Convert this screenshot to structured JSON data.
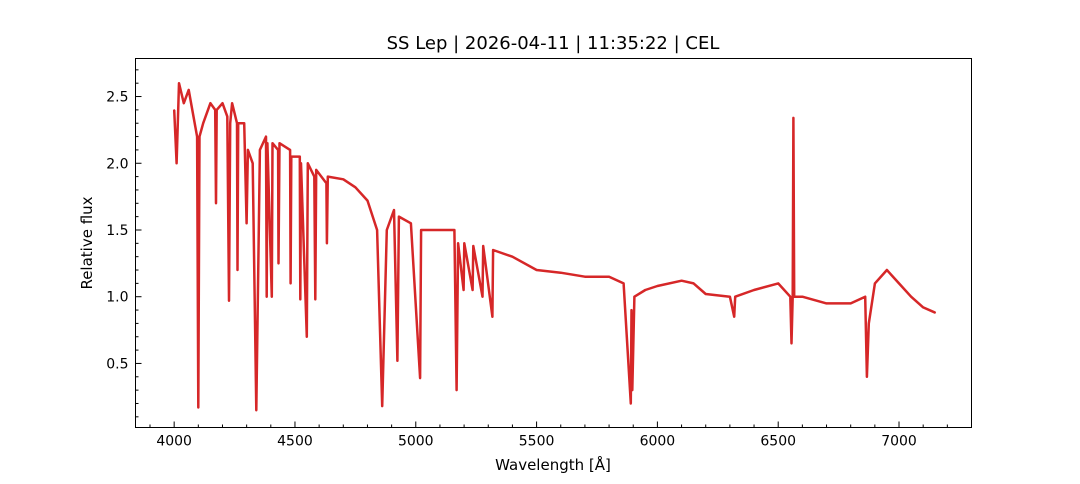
{
  "chart_data": {
    "type": "line",
    "title": "SS Lep | 2026-04-11 | 11:35:22 | CEL",
    "xlabel": "Wavelength [Å]",
    "ylabel": "Relative flux",
    "xlim": [
      3840,
      7300
    ],
    "ylim": [
      0.02,
      2.785
    ],
    "xticks": [
      4000,
      4500,
      5000,
      5500,
      6000,
      6500,
      7000
    ],
    "yticks": [
      0.5,
      1.0,
      1.5,
      2.0,
      2.5
    ],
    "ytick_labels": [
      "0.5",
      "1.0",
      "1.5",
      "2.0",
      "2.5"
    ],
    "grid": false,
    "color": "#d62728",
    "points": [
      [
        4000,
        2.4
      ],
      [
        4010,
        2.0
      ],
      [
        4020,
        2.6
      ],
      [
        4040,
        2.45
      ],
      [
        4060,
        2.55
      ],
      [
        4080,
        2.35
      ],
      [
        4095,
        2.2
      ],
      [
        4100,
        0.17
      ],
      [
        4105,
        2.2
      ],
      [
        4120,
        2.3
      ],
      [
        4150,
        2.45
      ],
      [
        4170,
        2.4
      ],
      [
        4173,
        1.7
      ],
      [
        4176,
        2.4
      ],
      [
        4200,
        2.45
      ],
      [
        4220,
        2.35
      ],
      [
        4227,
        0.97
      ],
      [
        4232,
        2.3
      ],
      [
        4240,
        2.45
      ],
      [
        4260,
        2.3
      ],
      [
        4262,
        1.2
      ],
      [
        4265,
        2.3
      ],
      [
        4290,
        2.3
      ],
      [
        4300,
        1.55
      ],
      [
        4305,
        2.1
      ],
      [
        4325,
        2.0
      ],
      [
        4340,
        0.15
      ],
      [
        4355,
        2.1
      ],
      [
        4380,
        2.2
      ],
      [
        4383,
        1.0
      ],
      [
        4386,
        2.15
      ],
      [
        4404,
        1.0
      ],
      [
        4407,
        2.15
      ],
      [
        4430,
        2.1
      ],
      [
        4432,
        1.25
      ],
      [
        4436,
        2.15
      ],
      [
        4480,
        2.1
      ],
      [
        4482,
        1.1
      ],
      [
        4485,
        2.05
      ],
      [
        4520,
        2.05
      ],
      [
        4522,
        0.98
      ],
      [
        4525,
        2.0
      ],
      [
        4549,
        0.7
      ],
      [
        4553,
        2.0
      ],
      [
        4580,
        1.9
      ],
      [
        4584,
        0.98
      ],
      [
        4588,
        1.95
      ],
      [
        4630,
        1.85
      ],
      [
        4632,
        1.4
      ],
      [
        4636,
        1.9
      ],
      [
        4700,
        1.88
      ],
      [
        4750,
        1.82
      ],
      [
        4800,
        1.72
      ],
      [
        4840,
        1.5
      ],
      [
        4861,
        0.18
      ],
      [
        4880,
        1.5
      ],
      [
        4910,
        1.65
      ],
      [
        4924,
        0.52
      ],
      [
        4930,
        1.6
      ],
      [
        4980,
        1.55
      ],
      [
        5018,
        0.39
      ],
      [
        5022,
        1.5
      ],
      [
        5100,
        1.5
      ],
      [
        5160,
        1.5
      ],
      [
        5169,
        0.3
      ],
      [
        5175,
        1.4
      ],
      [
        5198,
        1.05
      ],
      [
        5201,
        1.4
      ],
      [
        5235,
        1.05
      ],
      [
        5238,
        1.38
      ],
      [
        5276,
        1.0
      ],
      [
        5279,
        1.38
      ],
      [
        5317,
        0.85
      ],
      [
        5320,
        1.35
      ],
      [
        5400,
        1.3
      ],
      [
        5500,
        1.2
      ],
      [
        5600,
        1.18
      ],
      [
        5700,
        1.15
      ],
      [
        5800,
        1.15
      ],
      [
        5860,
        1.1
      ],
      [
        5890,
        0.2
      ],
      [
        5893,
        0.9
      ],
      [
        5896,
        0.3
      ],
      [
        5905,
        1.0
      ],
      [
        5950,
        1.05
      ],
      [
        6000,
        1.08
      ],
      [
        6100,
        1.12
      ],
      [
        6150,
        1.1
      ],
      [
        6200,
        1.02
      ],
      [
        6300,
        1.0
      ],
      [
        6318,
        0.85
      ],
      [
        6322,
        1.0
      ],
      [
        6400,
        1.05
      ],
      [
        6500,
        1.1
      ],
      [
        6550,
        1.0
      ],
      [
        6555,
        0.65
      ],
      [
        6560,
        1.0
      ],
      [
        6563,
        2.34
      ],
      [
        6566,
        1.0
      ],
      [
        6600,
        1.0
      ],
      [
        6700,
        0.95
      ],
      [
        6800,
        0.95
      ],
      [
        6860,
        1.0
      ],
      [
        6867,
        0.4
      ],
      [
        6875,
        0.8
      ],
      [
        6900,
        1.1
      ],
      [
        6950,
        1.2
      ],
      [
        7000,
        1.1
      ],
      [
        7050,
        1.0
      ],
      [
        7100,
        0.92
      ],
      [
        7150,
        0.88
      ]
    ]
  }
}
